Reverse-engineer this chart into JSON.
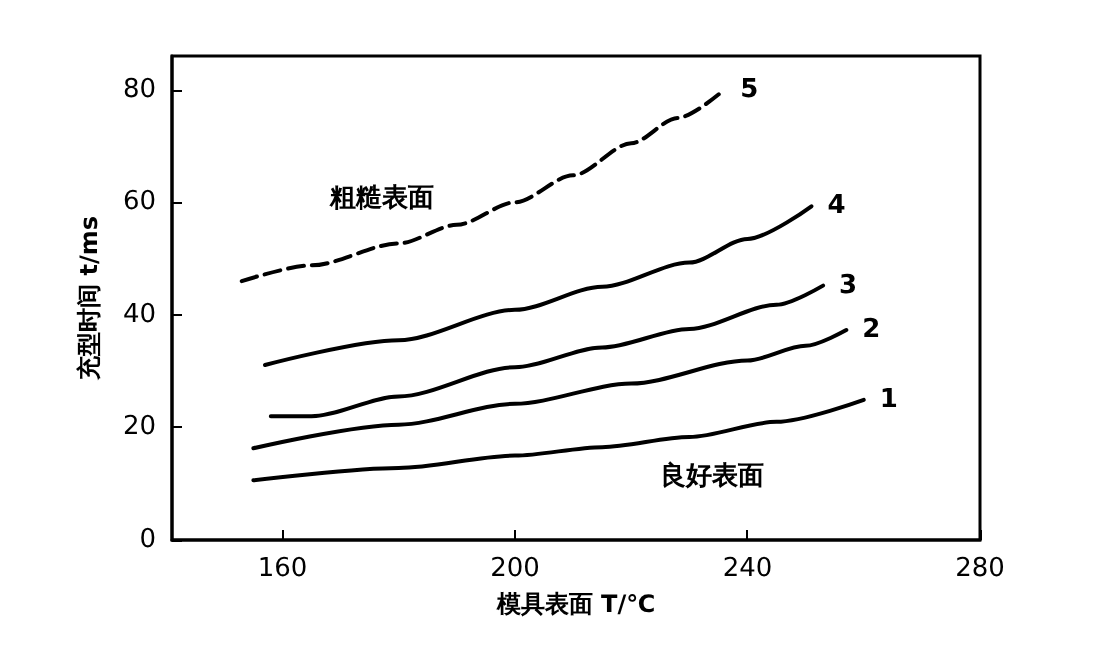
{
  "chart_data": {
    "type": "line",
    "xlabel": "模具表面 T/℃",
    "ylabel": "充型时间 t/ms",
    "xlim": [
      141,
      280
    ],
    "xticks": [
      160,
      200,
      240,
      280
    ],
    "ylim": [
      0,
      86
    ],
    "yticks": [
      0,
      20,
      40,
      60,
      80
    ],
    "grid": false,
    "legend": false,
    "marker": "none",
    "annotations": [
      "粗糙表面",
      "良好表面"
    ],
    "series": [
      {
        "name": "1",
        "color": "#000000",
        "x": [
          155,
          180,
          200,
          215,
          230,
          245,
          260
        ],
        "values": [
          10.6,
          12.8,
          15,
          16.5,
          18.3,
          21,
          24.9
        ]
      },
      {
        "name": "2",
        "color": "#000000",
        "x": [
          155,
          180,
          200,
          220,
          240,
          250,
          257
        ],
        "values": [
          16.3,
          20.5,
          24.2,
          27.8,
          31.9,
          34.5,
          37.3
        ]
      },
      {
        "name": "3",
        "color": "#000000",
        "x": [
          158,
          165,
          180,
          200,
          215,
          230,
          245,
          253
        ],
        "values": [
          22,
          22,
          25.5,
          30.7,
          34.2,
          37.5,
          41.8,
          45.2
        ]
      },
      {
        "name": "4",
        "color": "#000000",
        "x": [
          157,
          180,
          200,
          215,
          230,
          240,
          251
        ],
        "values": [
          31.1,
          35.5,
          40.9,
          45,
          49.3,
          53.5,
          59.3
        ]
      },
      {
        "name": "5",
        "color": "#000000",
        "x": [
          153,
          165,
          180,
          190,
          200,
          210,
          220,
          228,
          236
        ],
        "values": [
          46,
          48.8,
          52.7,
          56,
          60,
          64.8,
          70.5,
          75,
          80
        ],
        "line_style": "dashed"
      }
    ]
  }
}
